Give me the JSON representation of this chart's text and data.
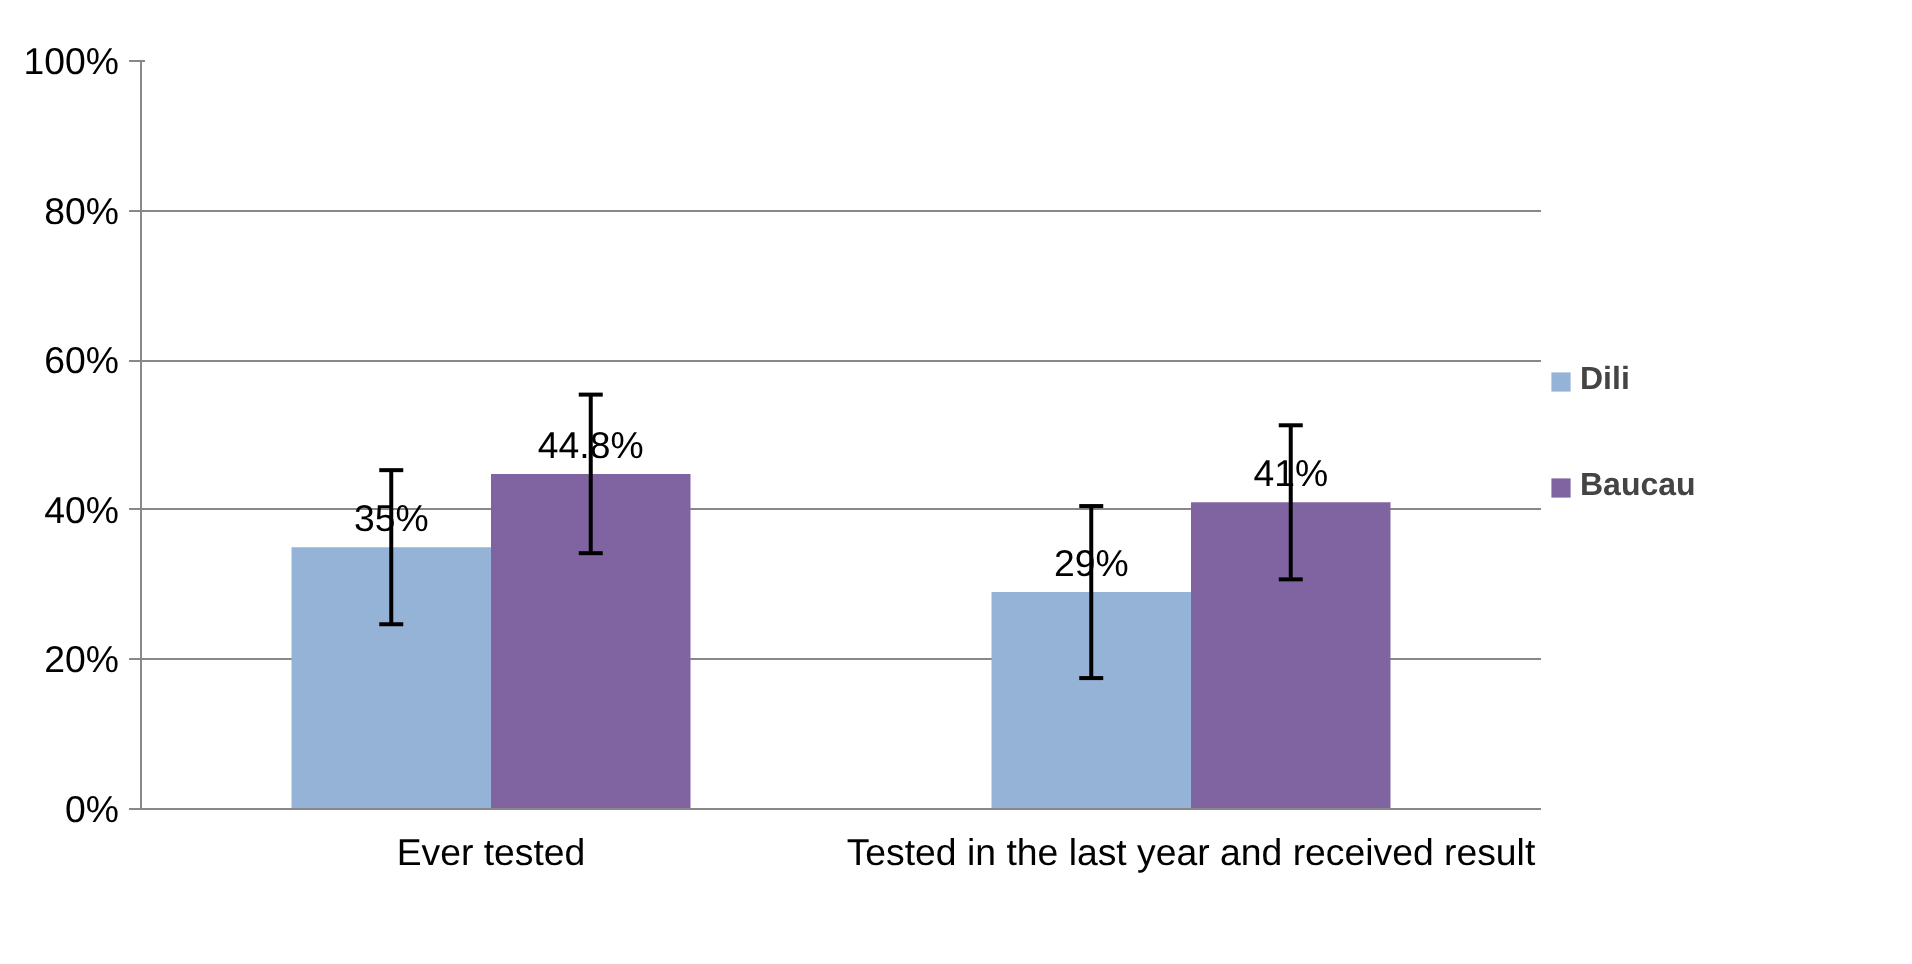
{
  "chart_data": {
    "type": "bar",
    "categories": [
      "Ever tested",
      "Tested in the last year and received result"
    ],
    "series": [
      {
        "name": "Dili",
        "color": "#95b3d7",
        "values": [
          35,
          29
        ],
        "value_labels": [
          "35%",
          "29%"
        ],
        "errors": [
          10.3,
          11.5
        ]
      },
      {
        "name": "Baucau",
        "color": "#8064a2",
        "values": [
          44.8,
          41
        ],
        "value_labels": [
          "44.8%",
          "41%"
        ],
        "errors": [
          10.6,
          10.3
        ]
      }
    ],
    "ylim": [
      0,
      100
    ],
    "yticks": [
      {
        "value": 0,
        "label": "0%"
      },
      {
        "value": 20,
        "label": "20%"
      },
      {
        "value": 40,
        "label": "40%"
      },
      {
        "value": 60,
        "label": "60%"
      },
      {
        "value": 80,
        "label": "80%"
      },
      {
        "value": 100,
        "label": "100%"
      }
    ],
    "grid": "y",
    "legend": "right"
  }
}
